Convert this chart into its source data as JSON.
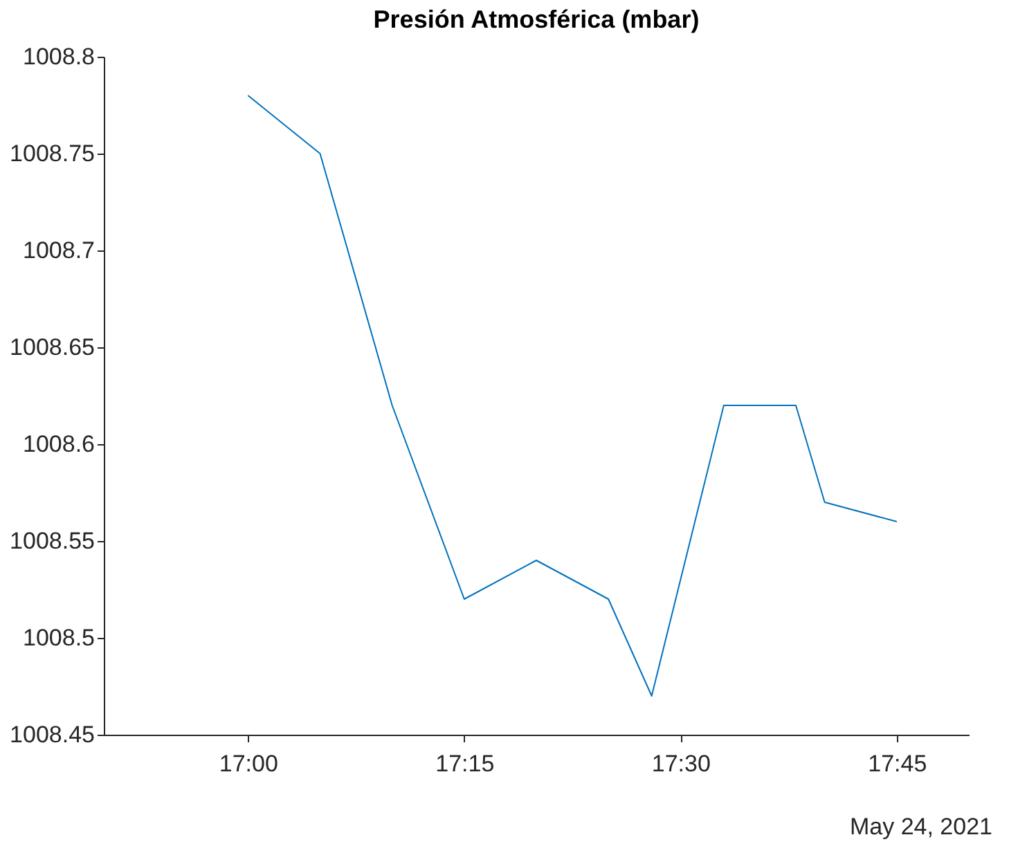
{
  "chart_data": {
    "type": "line",
    "title": "Presión Atmosférica (mbar)",
    "x": [
      "2021-05-24T17:00",
      "2021-05-24T17:05",
      "2021-05-24T17:10",
      "2021-05-24T17:15",
      "2021-05-24T17:20",
      "2021-05-24T17:25",
      "2021-05-24T17:28",
      "2021-05-24T17:33",
      "2021-05-24T17:38",
      "2021-05-24T17:40",
      "2021-05-24T17:45"
    ],
    "series": [
      {
        "color": "#0072bd",
        "values": [
          1008.78,
          1008.75,
          1008.62,
          1008.52,
          1008.54,
          1008.52,
          1008.47,
          1008.62,
          1008.62,
          1008.57,
          1008.56
        ]
      }
    ],
    "xlim": [
      "2021-05-24T16:50",
      "2021-05-24T17:50"
    ],
    "xticks": [
      {
        "value": "2021-05-24T17:00",
        "label": "17:00"
      },
      {
        "value": "2021-05-24T17:15",
        "label": "17:15"
      },
      {
        "value": "2021-05-24T17:30",
        "label": "17:30"
      },
      {
        "value": "2021-05-24T17:45",
        "label": "17:45"
      }
    ],
    "ylim": [
      1008.45,
      1008.8
    ],
    "yticks": [
      1008.45,
      1008.5,
      1008.55,
      1008.6,
      1008.65,
      1008.7,
      1008.75,
      1008.8
    ],
    "annotations": [
      "May 24, 2021"
    ],
    "grid": false,
    "marker": "none",
    "line_style": "solid"
  }
}
